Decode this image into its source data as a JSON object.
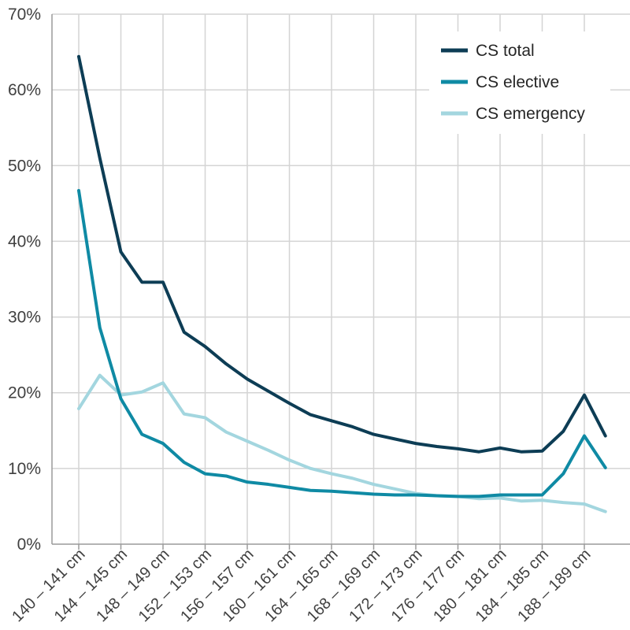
{
  "chart_data": {
    "type": "line",
    "title": "",
    "xlabel": "",
    "ylabel": "",
    "ylim": [
      0,
      70
    ],
    "yticks": [
      "0%",
      "10%",
      "20%",
      "30%",
      "40%",
      "50%",
      "60%",
      "70%"
    ],
    "grid": true,
    "legend_position": "top-right",
    "x_labels": [
      "140 – 141 cm",
      "144 – 145 cm",
      "148 – 149 cm",
      "152 – 153 cm",
      "156 – 157 cm",
      "160 – 161 cm",
      "164 – 165 cm",
      "168 – 169 cm",
      "172 – 173 cm",
      "176 – 177 cm",
      "180 – 181 cm",
      "184 – 185 cm",
      "188 – 189 cm"
    ],
    "series": [
      {
        "name": "CS total",
        "color": "#0d3d55",
        "values": [
          64.4,
          51.0,
          38.6,
          34.6,
          34.6,
          28.0,
          26.1,
          23.8,
          21.8,
          20.2,
          18.6,
          17.1,
          16.3,
          15.5,
          14.5,
          13.9,
          13.3,
          12.9,
          12.6,
          12.2,
          12.7,
          12.2,
          12.3,
          14.9,
          19.7,
          14.3
        ]
      },
      {
        "name": "CS elective",
        "color": "#0f8aa4",
        "values": [
          46.7,
          28.6,
          19.2,
          14.5,
          13.3,
          10.8,
          9.3,
          9.0,
          8.2,
          7.9,
          7.5,
          7.1,
          7.0,
          6.8,
          6.6,
          6.5,
          6.5,
          6.4,
          6.3,
          6.3,
          6.5,
          6.5,
          6.5,
          9.3,
          14.3,
          10.1
        ]
      },
      {
        "name": "CS emergency",
        "color": "#a3d6df",
        "values": [
          17.9,
          22.3,
          19.7,
          20.1,
          21.3,
          17.2,
          16.7,
          14.8,
          13.6,
          12.4,
          11.1,
          10.0,
          9.3,
          8.7,
          7.9,
          7.3,
          6.7,
          6.4,
          6.3,
          6.0,
          6.1,
          5.7,
          5.8,
          5.5,
          5.3,
          4.3
        ]
      }
    ]
  }
}
